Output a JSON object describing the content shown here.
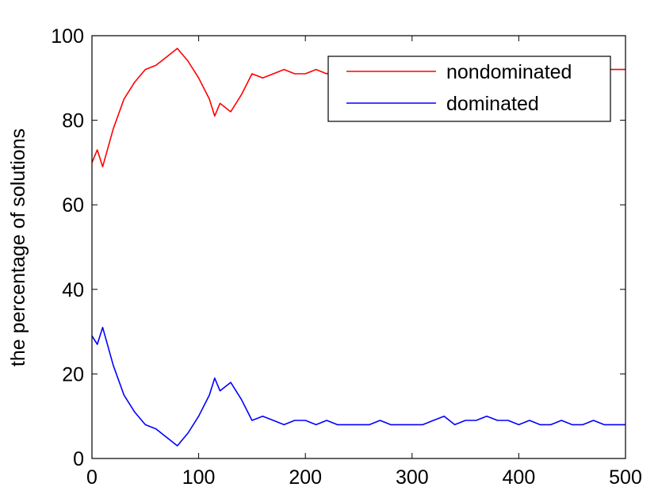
{
  "chart_data": {
    "type": "line",
    "title": "",
    "xlabel": "",
    "ylabel": "the percentage of solutions",
    "xlim": [
      0,
      500
    ],
    "ylim": [
      0,
      100
    ],
    "xticks": [
      0,
      100,
      200,
      300,
      400,
      500
    ],
    "yticks": [
      0,
      20,
      40,
      60,
      80,
      100
    ],
    "grid": false,
    "legend_position": "top-right",
    "series": [
      {
        "name": "nondominated",
        "color": "#ff0000",
        "x": [
          0,
          5,
          10,
          20,
          30,
          40,
          50,
          60,
          70,
          80,
          90,
          100,
          110,
          115,
          120,
          130,
          140,
          150,
          160,
          170,
          180,
          190,
          200,
          210,
          220,
          230,
          240,
          250,
          260,
          270,
          280,
          290,
          300,
          310,
          320,
          330,
          340,
          350,
          360,
          370,
          380,
          390,
          400,
          410,
          420,
          430,
          440,
          450,
          460,
          470,
          480,
          490,
          500
        ],
        "y": [
          70,
          73,
          69,
          78,
          85,
          89,
          92,
          93,
          95,
          97,
          94,
          90,
          85,
          81,
          84,
          82,
          86,
          91,
          90,
          91,
          92,
          91,
          91,
          92,
          91,
          92,
          92,
          92,
          92,
          91,
          92,
          92,
          92,
          92,
          91,
          90,
          92,
          91,
          91,
          90,
          91,
          91,
          92,
          91,
          92,
          92,
          91,
          92,
          92,
          91,
          92,
          92,
          92
        ]
      },
      {
        "name": "dominated",
        "color": "#0000ff",
        "x": [
          0,
          5,
          10,
          20,
          30,
          40,
          50,
          60,
          70,
          80,
          90,
          100,
          110,
          115,
          120,
          130,
          140,
          150,
          160,
          170,
          180,
          190,
          200,
          210,
          220,
          230,
          240,
          250,
          260,
          270,
          280,
          290,
          300,
          310,
          320,
          330,
          340,
          350,
          360,
          370,
          380,
          390,
          400,
          410,
          420,
          430,
          440,
          450,
          460,
          470,
          480,
          490,
          500
        ],
        "y": [
          29,
          27,
          31,
          22,
          15,
          11,
          8,
          7,
          5,
          3,
          6,
          10,
          15,
          19,
          16,
          18,
          14,
          9,
          10,
          9,
          8,
          9,
          9,
          8,
          9,
          8,
          8,
          8,
          8,
          9,
          8,
          8,
          8,
          8,
          9,
          10,
          8,
          9,
          9,
          10,
          9,
          9,
          8,
          9,
          8,
          8,
          9,
          8,
          8,
          9,
          8,
          8,
          8
        ]
      }
    ]
  }
}
